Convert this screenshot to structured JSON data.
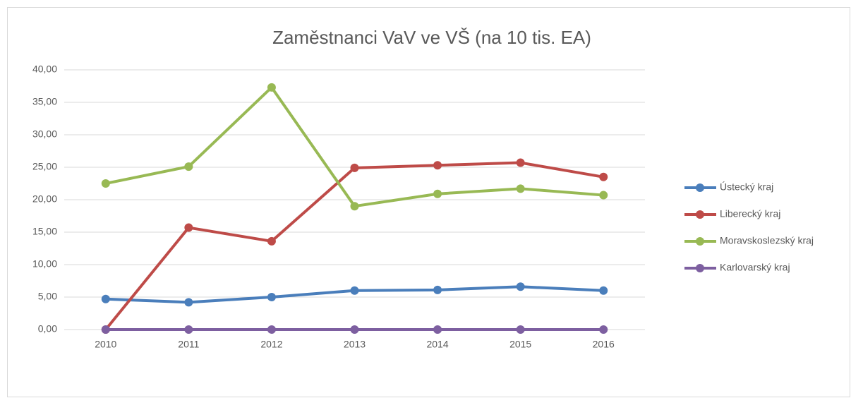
{
  "chart_data": {
    "type": "line",
    "title": "Zaměstnanci VaV ve VŠ (na 10 tis. EA)",
    "categories": [
      "2010",
      "2011",
      "2012",
      "2013",
      "2014",
      "2015",
      "2016"
    ],
    "series": [
      {
        "name": "Ústecký kraj",
        "color": "#4a7ebb",
        "values": [
          4.7,
          4.2,
          5.0,
          6.0,
          6.1,
          6.6,
          6.0
        ]
      },
      {
        "name": "Liberecký kraj",
        "color": "#be4b48",
        "values": [
          0,
          15.7,
          13.6,
          24.9,
          25.3,
          25.7,
          23.5
        ]
      },
      {
        "name": "Moravskoslezský kraj",
        "color": "#98b954",
        "values": [
          22.5,
          25.1,
          37.3,
          19.0,
          20.9,
          21.7,
          20.7
        ]
      },
      {
        "name": "Karlovarský kraj",
        "color": "#7d5fa0",
        "values": [
          0,
          0,
          0,
          0,
          0,
          0,
          0
        ]
      }
    ],
    "ylim": [
      0,
      40
    ],
    "yticks": [
      {
        "value": 0,
        "label": "0,00"
      },
      {
        "value": 5,
        "label": "5,00"
      },
      {
        "value": 10,
        "label": "10,00"
      },
      {
        "value": 15,
        "label": "15,00"
      },
      {
        "value": 20,
        "label": "20,00"
      },
      {
        "value": 25,
        "label": "25,00"
      },
      {
        "value": 30,
        "label": "30,00"
      },
      {
        "value": 35,
        "label": "35,00"
      },
      {
        "value": 40,
        "label": "40,00"
      }
    ],
    "grid": true,
    "legend": "right"
  }
}
